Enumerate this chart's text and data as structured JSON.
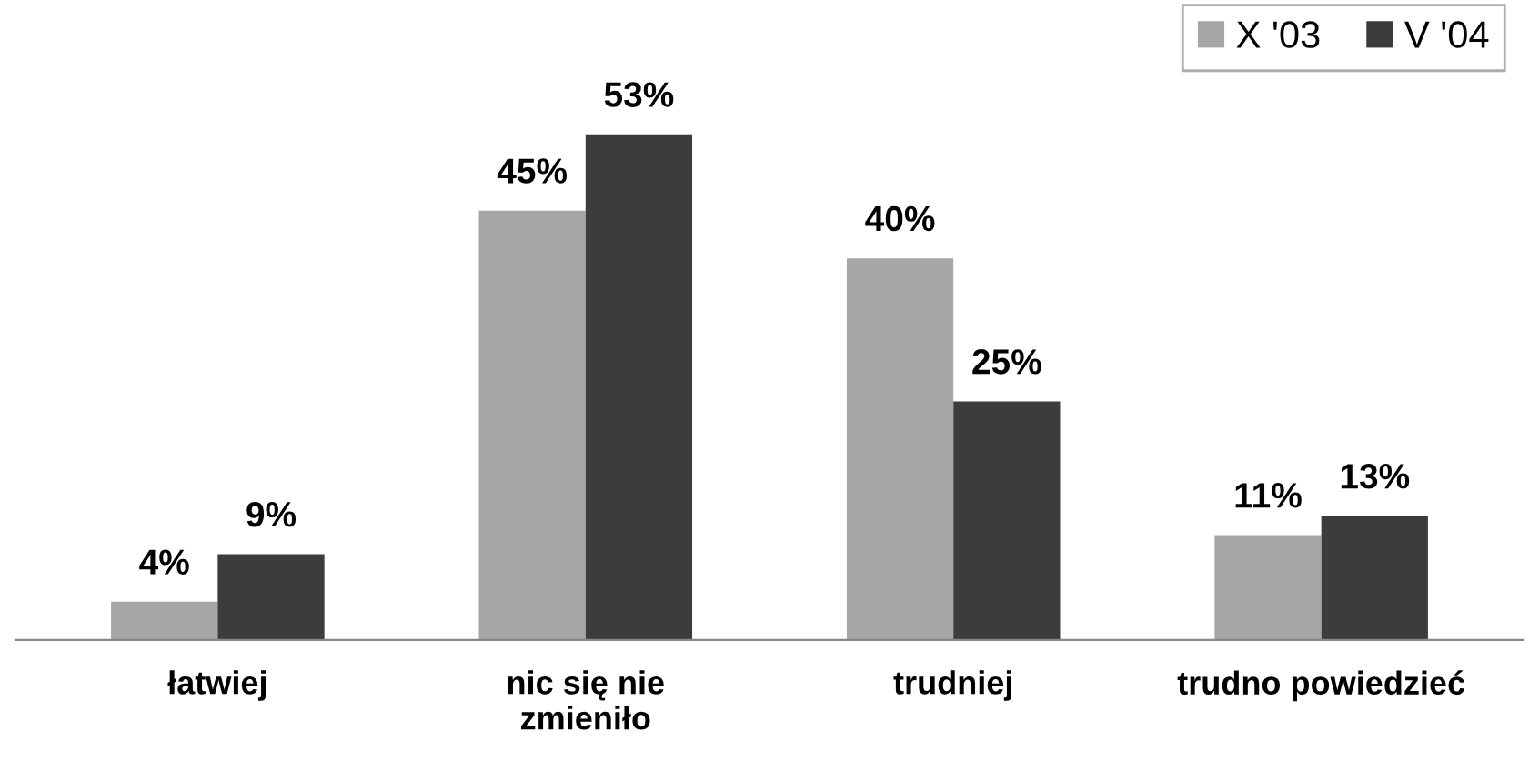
{
  "chart_data": {
    "type": "bar",
    "categories": [
      "łatwiej",
      "nic się nie\nzmieniło",
      "trudniej",
      "trudno powiedzieć"
    ],
    "series": [
      {
        "name": "X '03",
        "color": "#a6a6a6",
        "values": [
          4,
          45,
          40,
          11
        ],
        "value_labels": [
          "4%",
          "45%",
          "40%",
          "11%"
        ]
      },
      {
        "name": "V '04",
        "color": "#3c3c3c",
        "values": [
          9,
          53,
          25,
          13
        ],
        "value_labels": [
          "9%",
          "53%",
          "25%",
          "13%"
        ]
      }
    ],
    "legend": "top right",
    "grid": false
  }
}
